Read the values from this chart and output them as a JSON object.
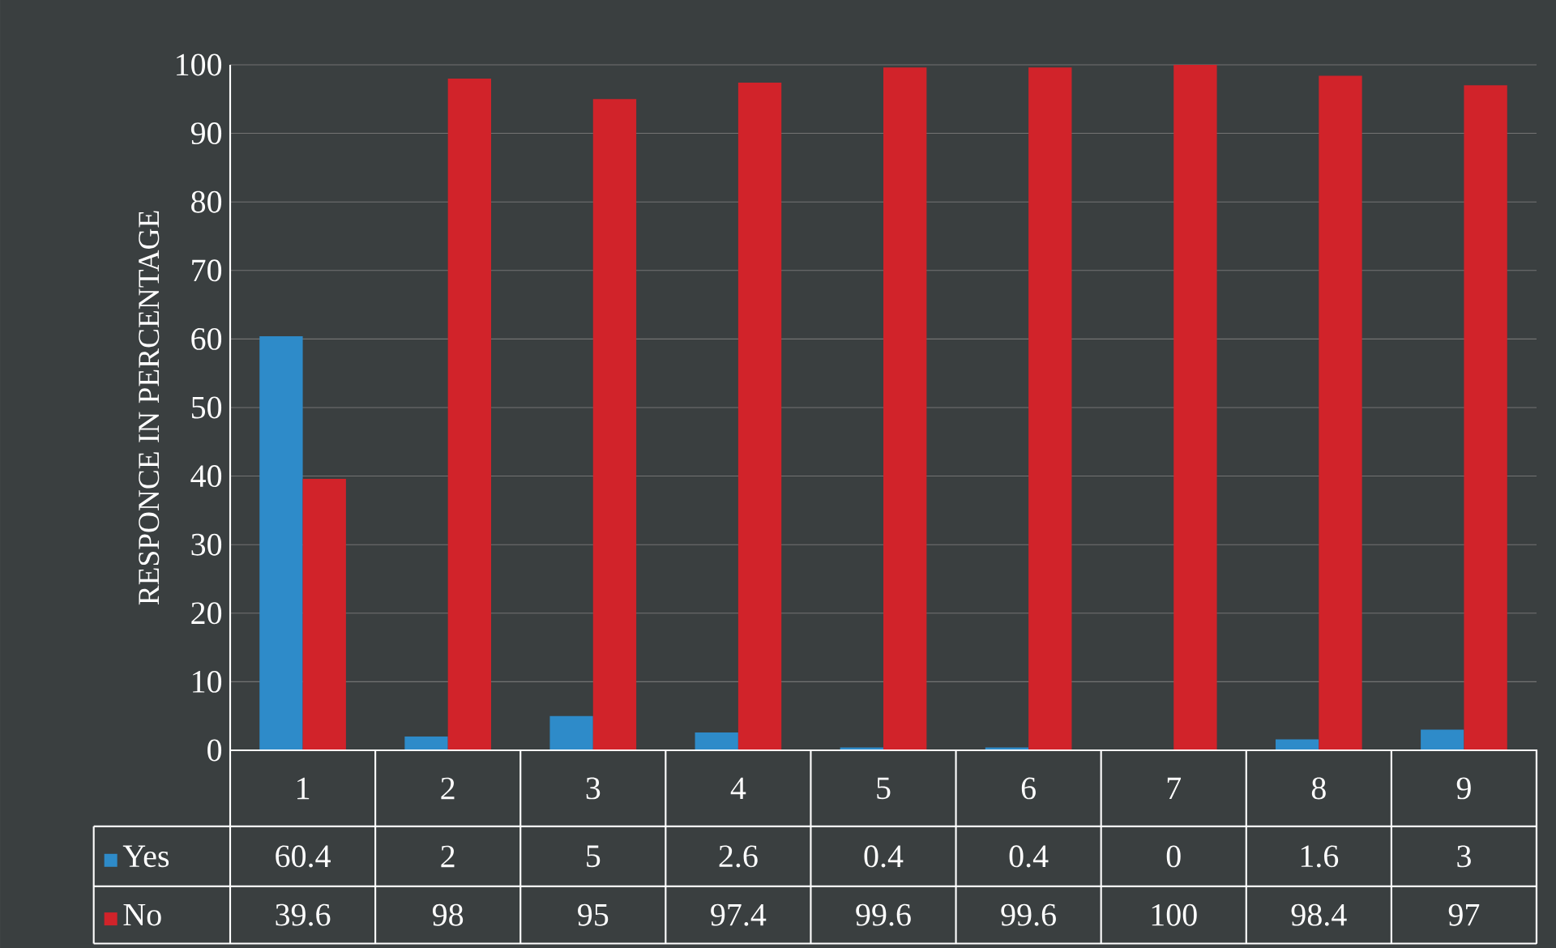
{
  "chart_data": {
    "type": "bar",
    "ylabel": "RESPONCE IN PERCENTAGE",
    "categories": [
      "1",
      "2",
      "3",
      "4",
      "5",
      "6",
      "7",
      "8",
      "9"
    ],
    "series": [
      {
        "name": "Yes",
        "color": "#2e8bc9",
        "values": [
          60.4,
          2,
          5,
          2.6,
          0.4,
          0.4,
          0,
          1.6,
          3
        ]
      },
      {
        "name": "No",
        "color": "#d1232a",
        "values": [
          39.6,
          98,
          95,
          97.4,
          99.6,
          99.6,
          100,
          98.4,
          97
        ]
      }
    ],
    "ylim": [
      0,
      100
    ],
    "yticks": [
      0,
      10,
      20,
      30,
      40,
      50,
      60,
      70,
      80,
      90,
      100
    ],
    "grid": "y",
    "legend": "bottom",
    "data_labels": true
  }
}
